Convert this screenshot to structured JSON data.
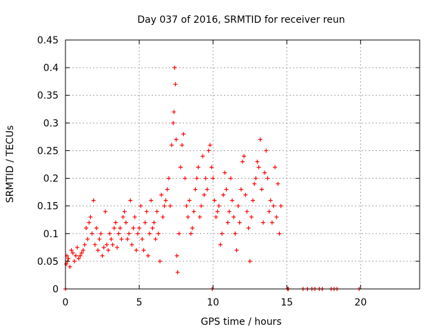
{
  "chart_data": {
    "type": "scatter",
    "title": "Day 037 of 2016, SRMTID for receiver reun",
    "xlabel": "GPS time / hours",
    "ylabel": "SRMTID / TECUs",
    "xlim": [
      0,
      24
    ],
    "ylim": [
      0,
      0.45
    ],
    "x_ticks": [
      0,
      5,
      10,
      15,
      20
    ],
    "y_ticks": [
      0,
      0.05,
      0.1,
      0.15,
      0.2,
      0.25,
      0.3,
      0.35,
      0.4,
      0.45
    ],
    "x_tick_labels": [
      "0",
      "5",
      "10",
      "15",
      "20"
    ],
    "y_tick_labels": [
      "0",
      "0.05",
      "0.1",
      "0.15",
      "0.2",
      "0.25",
      "0.3",
      "0.35",
      "0.4",
      "0.45"
    ],
    "grid": true,
    "marker": "+",
    "color": "#ff0000",
    "series": [
      {
        "name": "SRMTID",
        "x": [
          0.05,
          0.1,
          0.15,
          0.2,
          0.3,
          0.4,
          0.5,
          0.6,
          0.7,
          0.8,
          0.9,
          1.0,
          1.1,
          1.2,
          1.3,
          1.4,
          1.5,
          1.6,
          1.7,
          1.8,
          1.9,
          2.0,
          2.1,
          2.2,
          2.3,
          2.4,
          2.5,
          2.6,
          2.7,
          2.8,
          2.9,
          3.0,
          3.1,
          3.2,
          3.3,
          3.4,
          3.5,
          3.6,
          3.7,
          3.8,
          3.9,
          4.0,
          4.1,
          4.2,
          4.3,
          4.4,
          4.5,
          4.6,
          4.7,
          4.8,
          4.9,
          5.0,
          5.1,
          5.2,
          5.3,
          5.4,
          5.5,
          5.6,
          5.7,
          5.8,
          5.9,
          6.0,
          6.1,
          6.2,
          6.3,
          6.4,
          6.5,
          6.6,
          6.7,
          6.8,
          6.9,
          7.0,
          7.1,
          7.2,
          7.3,
          7.35,
          7.4,
          7.45,
          7.5,
          7.55,
          7.6,
          7.7,
          7.8,
          7.9,
          8.0,
          8.1,
          8.2,
          8.3,
          8.4,
          8.5,
          8.6,
          8.7,
          8.8,
          8.9,
          9.0,
          9.1,
          9.2,
          9.3,
          9.4,
          9.5,
          9.6,
          9.7,
          9.8,
          9.9,
          10.0,
          10.1,
          10.2,
          10.3,
          10.4,
          10.5,
          10.6,
          10.7,
          10.8,
          10.9,
          11.0,
          11.1,
          11.2,
          11.3,
          11.4,
          11.5,
          11.6,
          11.7,
          11.8,
          11.9,
          12.0,
          12.1,
          12.2,
          12.3,
          12.4,
          12.5,
          12.6,
          12.7,
          12.8,
          12.9,
          13.0,
          13.1,
          13.2,
          13.3,
          13.4,
          13.5,
          13.6,
          13.7,
          13.8,
          13.9,
          14.0,
          14.1,
          14.2,
          14.3,
          14.4,
          14.5,
          14.6,
          0.0,
          9.95,
          15.05,
          15.1,
          16.1,
          16.4,
          16.7,
          16.9,
          17.2,
          17.4,
          18.0,
          18.2,
          18.4,
          19.9
        ],
        "y": [
          0.045,
          0.06,
          0.05,
          0.055,
          0.04,
          0.07,
          0.065,
          0.05,
          0.06,
          0.075,
          0.055,
          0.06,
          0.065,
          0.07,
          0.08,
          0.11,
          0.09,
          0.12,
          0.13,
          0.1,
          0.16,
          0.08,
          0.11,
          0.07,
          0.09,
          0.1,
          0.06,
          0.075,
          0.14,
          0.08,
          0.07,
          0.1,
          0.09,
          0.08,
          0.11,
          0.12,
          0.075,
          0.1,
          0.11,
          0.09,
          0.13,
          0.14,
          0.12,
          0.09,
          0.1,
          0.16,
          0.08,
          0.11,
          0.13,
          0.07,
          0.1,
          0.11,
          0.15,
          0.09,
          0.07,
          0.12,
          0.14,
          0.06,
          0.1,
          0.16,
          0.11,
          0.12,
          0.09,
          0.14,
          0.1,
          0.05,
          0.17,
          0.13,
          0.15,
          0.16,
          0.18,
          0.2,
          0.15,
          0.26,
          0.3,
          0.32,
          0.4,
          0.37,
          0.27,
          0.06,
          0.03,
          0.1,
          0.22,
          0.26,
          0.28,
          0.2,
          0.15,
          0.13,
          0.16,
          0.1,
          0.11,
          0.14,
          0.18,
          0.2,
          0.22,
          0.13,
          0.15,
          0.24,
          0.17,
          0.2,
          0.18,
          0.25,
          0.26,
          0.22,
          0.2,
          0.16,
          0.13,
          0.14,
          0.15,
          0.08,
          0.1,
          0.17,
          0.21,
          0.18,
          0.12,
          0.14,
          0.2,
          0.16,
          0.13,
          0.1,
          0.07,
          0.15,
          0.12,
          0.18,
          0.23,
          0.24,
          0.17,
          0.14,
          0.11,
          0.05,
          0.13,
          0.16,
          0.19,
          0.2,
          0.23,
          0.22,
          0.27,
          0.18,
          0.12,
          0.21,
          0.25,
          0.2,
          0.14,
          0.16,
          0.12,
          0.15,
          0.22,
          0.13,
          0.19,
          0.1,
          0.15,
          0.0,
          0.0,
          0.0,
          0.0,
          0.0,
          0.0,
          0.0,
          0.0,
          0.0,
          0.0,
          0.0,
          0.0,
          0.0,
          0.0
        ]
      }
    ]
  }
}
